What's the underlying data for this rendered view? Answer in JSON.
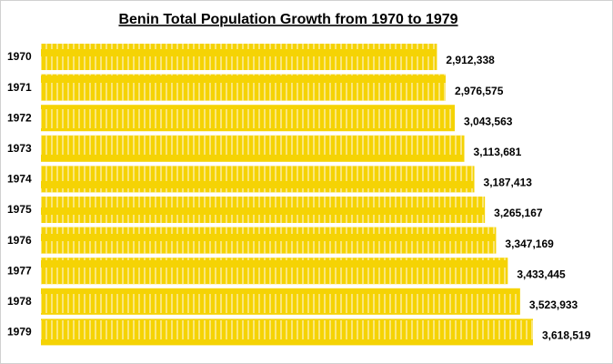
{
  "chart_data": {
    "type": "bar",
    "orientation": "horizontal",
    "title": "Benin Total Population Growth from 1970 to 1979",
    "categories": [
      "1970",
      "1971",
      "1972",
      "1973",
      "1974",
      "1975",
      "1976",
      "1977",
      "1978",
      "1979"
    ],
    "values": [
      2912338,
      2976575,
      3043563,
      3113681,
      3187413,
      3265167,
      3347169,
      3433445,
      3523933,
      3618519
    ],
    "value_labels": [
      "2,912,338",
      "2,976,575",
      "3,043,563",
      "3,113,681",
      "3,187,413",
      "3,265,167",
      "3,347,169",
      "3,433,445",
      "3,523,933",
      "3,618,519"
    ],
    "color": "#f5d304"
  }
}
